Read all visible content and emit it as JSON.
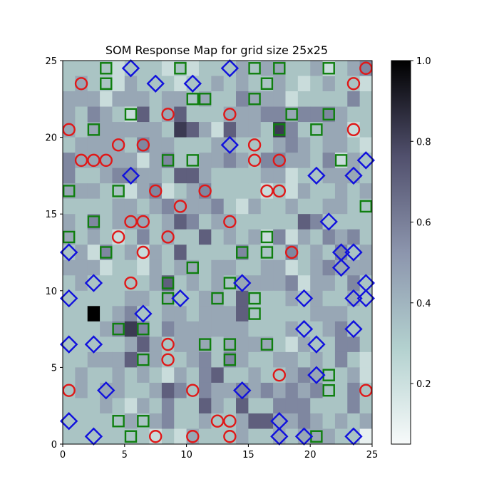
{
  "chart_data": {
    "type": "heatmap",
    "title": "SOM Response Map for grid size 25x25",
    "xlabel": "",
    "ylabel": "",
    "xlim": [
      0,
      25
    ],
    "ylim": [
      0,
      25
    ],
    "grid": false,
    "xticks": [
      "0",
      "5",
      "10",
      "15",
      "20",
      "25"
    ],
    "yticks": [
      "0",
      "5",
      "10",
      "15",
      "20",
      "25"
    ],
    "colormap": "bone_r",
    "colorbar": {
      "range": [
        0.05,
        1.0
      ],
      "ticks": [
        "0.2",
        "0.4",
        "0.6",
        "0.8",
        "1.0"
      ]
    },
    "cells": [
      "3333233323233343443342345",
      "3433243332334343343234332",
      "4442444344343354442333353",
      "4354326346333444554555433",
      "4344444437642644375334423",
      "3444435443334433345434432",
      "5444442453344543554435243",
      "5334554436643333442334443",
      "4443324523453333232433434",
      "3333443454445324334334433",
      "4353444346534433333653333",
      "4343235343363434252435453",
      "3425342436333353335343534",
      "4442332434434433442345444",
      "3433333463434344445244353",
      "3333344343344363334343343",
      "3383453344344463333344433",
      "3334575354444443334334533",
      "3333346434443444432433553",
      "3344464433453543344343532",
      "3433434324356334334543342",
      "3434433465354454545453353",
      "3334324353364363355533353",
      "3333343453343346644543434",
      "3333333232433343343444331"
    ],
    "series": [
      {
        "marker": "circle",
        "color": "#e01818",
        "points": [
          [
            1.5,
            23.5
          ],
          [
            23.5,
            23.5
          ],
          [
            24.5,
            24.5
          ],
          [
            8.5,
            21.5
          ],
          [
            13.5,
            21.5
          ],
          [
            0.5,
            20.5
          ],
          [
            23.5,
            20.5
          ],
          [
            4.5,
            19.5
          ],
          [
            6.5,
            19.5
          ],
          [
            15.5,
            19.5
          ],
          [
            1.5,
            18.5
          ],
          [
            2.5,
            18.5
          ],
          [
            3.5,
            18.5
          ],
          [
            15.5,
            18.5
          ],
          [
            17.5,
            18.5
          ],
          [
            7.5,
            16.5
          ],
          [
            11.5,
            16.5
          ],
          [
            16.5,
            16.5
          ],
          [
            17.5,
            16.5
          ],
          [
            9.5,
            15.5
          ],
          [
            5.5,
            14.5
          ],
          [
            6.5,
            14.5
          ],
          [
            13.5,
            14.5
          ],
          [
            4.5,
            13.5
          ],
          [
            8.5,
            13.5
          ],
          [
            6.5,
            12.5
          ],
          [
            18.5,
            12.5
          ],
          [
            5.5,
            10.5
          ],
          [
            8.5,
            6.5
          ],
          [
            8.5,
            5.5
          ],
          [
            17.5,
            4.5
          ],
          [
            0.5,
            3.5
          ],
          [
            10.5,
            3.5
          ],
          [
            24.5,
            3.5
          ],
          [
            12.5,
            1.5
          ],
          [
            13.5,
            1.5
          ],
          [
            7.5,
            0.5
          ],
          [
            10.5,
            0.5
          ],
          [
            13.5,
            0.5
          ]
        ]
      },
      {
        "marker": "square",
        "color": "#0f7f0f",
        "points": [
          [
            3.5,
            24.5
          ],
          [
            9.5,
            24.5
          ],
          [
            15.5,
            24.5
          ],
          [
            17.5,
            24.5
          ],
          [
            21.5,
            24.5
          ],
          [
            3.5,
            23.5
          ],
          [
            16.5,
            23.5
          ],
          [
            10.5,
            22.5
          ],
          [
            11.5,
            22.5
          ],
          [
            15.5,
            22.5
          ],
          [
            5.5,
            21.5
          ],
          [
            18.5,
            21.5
          ],
          [
            21.5,
            21.5
          ],
          [
            2.5,
            20.5
          ],
          [
            17.5,
            20.5
          ],
          [
            20.5,
            20.5
          ],
          [
            8.5,
            18.5
          ],
          [
            10.5,
            18.5
          ],
          [
            22.5,
            18.5
          ],
          [
            0.5,
            16.5
          ],
          [
            4.5,
            16.5
          ],
          [
            24.5,
            15.5
          ],
          [
            2.5,
            14.5
          ],
          [
            0.5,
            13.5
          ],
          [
            16.5,
            13.5
          ],
          [
            3.5,
            12.5
          ],
          [
            14.5,
            12.5
          ],
          [
            16.5,
            12.5
          ],
          [
            10.5,
            11.5
          ],
          [
            8.5,
            10.5
          ],
          [
            13.5,
            10.5
          ],
          [
            8.5,
            9.5
          ],
          [
            12.5,
            9.5
          ],
          [
            15.5,
            9.5
          ],
          [
            15.5,
            8.5
          ],
          [
            4.5,
            7.5
          ],
          [
            6.5,
            7.5
          ],
          [
            11.5,
            6.5
          ],
          [
            13.5,
            6.5
          ],
          [
            16.5,
            6.5
          ],
          [
            6.5,
            5.5
          ],
          [
            13.5,
            5.5
          ],
          [
            21.5,
            4.5
          ],
          [
            21.5,
            3.5
          ],
          [
            4.5,
            1.5
          ],
          [
            6.5,
            1.5
          ],
          [
            5.5,
            0.5
          ],
          [
            20.5,
            0.5
          ]
        ]
      },
      {
        "marker": "diamond",
        "color": "#1111dd",
        "points": [
          [
            5.5,
            24.5
          ],
          [
            13.5,
            24.5
          ],
          [
            7.5,
            23.5
          ],
          [
            10.5,
            23.5
          ],
          [
            13.5,
            19.5
          ],
          [
            24.5,
            18.5
          ],
          [
            5.5,
            17.5
          ],
          [
            20.5,
            17.5
          ],
          [
            23.5,
            17.5
          ],
          [
            21.5,
            14.5
          ],
          [
            0.5,
            12.5
          ],
          [
            22.5,
            12.5
          ],
          [
            23.5,
            12.5
          ],
          [
            22.5,
            11.5
          ],
          [
            2.5,
            10.5
          ],
          [
            14.5,
            10.5
          ],
          [
            24.5,
            10.5
          ],
          [
            0.5,
            9.5
          ],
          [
            9.5,
            9.5
          ],
          [
            19.5,
            9.5
          ],
          [
            23.5,
            9.5
          ],
          [
            24.5,
            9.5
          ],
          [
            6.5,
            8.5
          ],
          [
            19.5,
            7.5
          ],
          [
            23.5,
            7.5
          ],
          [
            0.5,
            6.5
          ],
          [
            2.5,
            6.5
          ],
          [
            20.5,
            6.5
          ],
          [
            20.5,
            4.5
          ],
          [
            3.5,
            3.5
          ],
          [
            14.5,
            3.5
          ],
          [
            0.5,
            1.5
          ],
          [
            17.5,
            1.5
          ],
          [
            2.5,
            0.5
          ],
          [
            17.5,
            0.5
          ],
          [
            19.5,
            0.5
          ],
          [
            23.5,
            0.5
          ]
        ]
      }
    ]
  }
}
